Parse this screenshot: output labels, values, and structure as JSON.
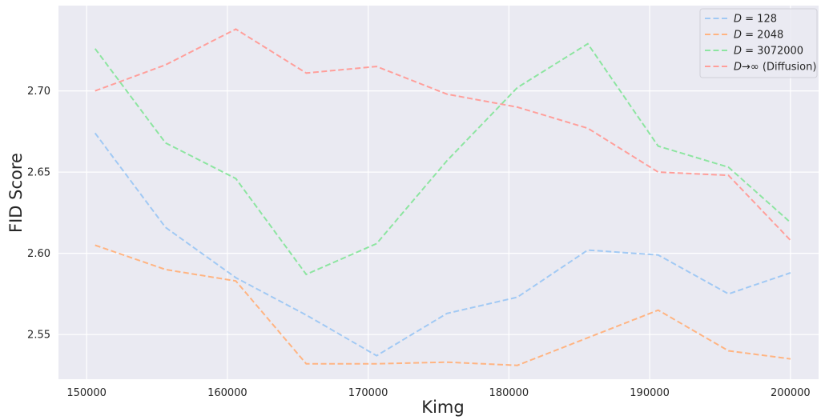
{
  "chart_data": {
    "type": "line",
    "title": "",
    "xlabel": "Kimg",
    "ylabel": "FID Score",
    "xlim": [
      148000,
      202000
    ],
    "ylim": [
      2.5225,
      2.7525
    ],
    "xticks": [
      150000,
      160000,
      170000,
      180000,
      190000,
      200000
    ],
    "xtick_labels": [
      "150000",
      "160000",
      "170000",
      "180000",
      "190000",
      "200000"
    ],
    "yticks": [
      2.55,
      2.6,
      2.65,
      2.7
    ],
    "ytick_labels": [
      "2.55",
      "2.60",
      "2.65",
      "2.70"
    ],
    "grid": true,
    "legend_position": "top-right",
    "line_style": "dashed",
    "x": [
      150600,
      155600,
      160600,
      165600,
      170600,
      175600,
      180600,
      185600,
      190600,
      195600,
      200000
    ],
    "series": [
      {
        "name": "D = 128",
        "name_parts": [
          "D",
          " = 128"
        ],
        "color": "#a1c9f4",
        "values": [
          2.674,
          2.616,
          2.585,
          2.562,
          2.537,
          2.563,
          2.573,
          2.602,
          2.599,
          2.575,
          2.588
        ]
      },
      {
        "name": "D = 2048",
        "name_parts": [
          "D",
          " = 2048"
        ],
        "color": "#ffb482",
        "values": [
          2.605,
          2.59,
          2.583,
          2.532,
          2.532,
          2.533,
          2.531,
          2.548,
          2.565,
          2.54,
          2.535
        ]
      },
      {
        "name": "D = 3072000",
        "name_parts": [
          "D",
          " = 3072000"
        ],
        "color": "#8de5a1",
        "values": [
          2.726,
          2.668,
          2.646,
          2.587,
          2.606,
          2.657,
          2.702,
          2.729,
          2.666,
          2.653,
          2.619
        ]
      },
      {
        "name": "D→∞ (Diffusion)",
        "name_parts": [
          "D",
          "→∞ (Diffusion)"
        ],
        "color": "#ff9f9b",
        "values": [
          2.7,
          2.716,
          2.738,
          2.711,
          2.715,
          2.698,
          2.69,
          2.677,
          2.65,
          2.648,
          2.608
        ]
      }
    ]
  }
}
